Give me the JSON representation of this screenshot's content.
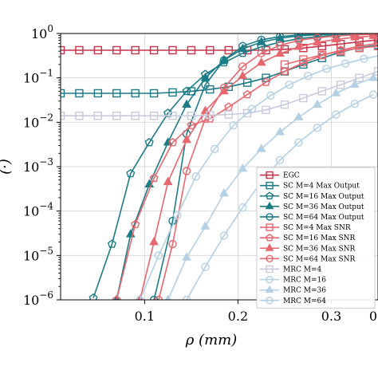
{
  "chart_data": {
    "type": "line",
    "xlabel": "ρ (mm)",
    "ylabel": "(·)",
    "xlim": [
      0.01,
      0.35
    ],
    "ylim_log10": [
      -6,
      0
    ],
    "yscale": "log",
    "grid": true,
    "legend_position": "lower-right",
    "x_ticks": [
      {
        "value": 0.1,
        "label": "0.1"
      },
      {
        "value": 0.2,
        "label": "0.2"
      },
      {
        "value": 0.3,
        "label": "0.3"
      },
      {
        "value": 0.4,
        "label": "0"
      }
    ],
    "y_ticks": [
      {
        "exp": 0,
        "base": "10",
        "sup": "0"
      },
      {
        "exp": -1,
        "base": "10",
        "sup": "−1"
      },
      {
        "exp": -2,
        "base": "10",
        "sup": "−2"
      },
      {
        "exp": -3,
        "base": "10",
        "sup": "−3"
      },
      {
        "exp": -4,
        "base": "10",
        "sup": "−4"
      },
      {
        "exp": -5,
        "base": "10",
        "sup": "−5"
      },
      {
        "exp": -6,
        "base": "10",
        "sup": "−6"
      }
    ],
    "series": [
      {
        "name": "EGC",
        "color": "#c8334a",
        "marker": "square",
        "x": [
          0.01,
          0.03,
          0.05,
          0.07,
          0.09,
          0.11,
          0.13,
          0.15,
          0.17,
          0.19,
          0.21,
          0.23,
          0.25,
          0.27,
          0.29,
          0.31,
          0.33,
          0.35
        ],
        "y": [
          0.42,
          0.42,
          0.42,
          0.42,
          0.42,
          0.42,
          0.42,
          0.42,
          0.42,
          0.42,
          0.42,
          0.42,
          0.44,
          0.47,
          0.52,
          0.58,
          0.65,
          0.72
        ]
      },
      {
        "name": "SC M=4 Max Output",
        "color": "#1b7c86",
        "marker": "square",
        "x": [
          0.01,
          0.03,
          0.05,
          0.07,
          0.09,
          0.11,
          0.13,
          0.15,
          0.17,
          0.19,
          0.21,
          0.23,
          0.25,
          0.27,
          0.29,
          0.31,
          0.33,
          0.35
        ],
        "y": [
          0.045,
          0.045,
          0.045,
          0.045,
          0.045,
          0.045,
          0.047,
          0.05,
          0.055,
          0.063,
          0.078,
          0.1,
          0.14,
          0.2,
          0.28,
          0.38,
          0.48,
          0.55
        ]
      },
      {
        "name": "SC M=16 Max Output",
        "color": "#1b7c86",
        "marker": "pentagon",
        "x": [
          0.045,
          0.065,
          0.085,
          0.105,
          0.125,
          0.145,
          0.165,
          0.185,
          0.205,
          0.225,
          0.245,
          0.265,
          0.285,
          0.305,
          0.325,
          0.345
        ],
        "y": [
          1.1e-06,
          1.8e-05,
          0.0007,
          0.0035,
          0.016,
          0.05,
          0.12,
          0.22,
          0.36,
          0.5,
          0.64,
          0.76,
          0.85,
          0.92,
          0.96,
          0.98
        ]
      },
      {
        "name": "SC M=36 Max Output",
        "color": "#1b7c86",
        "marker": "triangle",
        "x": [
          0.07,
          0.085,
          0.105,
          0.125,
          0.145,
          0.165,
          0.185,
          0.205,
          0.225,
          0.245,
          0.265,
          0.285,
          0.305,
          0.325,
          0.345
        ],
        "y": [
          1e-06,
          3e-05,
          0.0004,
          0.0035,
          0.025,
          0.1,
          0.25,
          0.45,
          0.64,
          0.78,
          0.88,
          0.94,
          0.97,
          0.99,
          0.995
        ]
      },
      {
        "name": "SC M=64 Max Output",
        "color": "#1b7c86",
        "marker": "circle",
        "x": [
          0.11,
          0.13,
          0.145,
          0.165,
          0.185,
          0.205,
          0.225,
          0.245,
          0.265,
          0.285,
          0.305,
          0.325,
          0.345
        ],
        "y": [
          1e-06,
          6e-05,
          0.0055,
          0.07,
          0.25,
          0.52,
          0.72,
          0.85,
          0.93,
          0.97,
          0.985,
          0.993,
          0.997
        ]
      },
      {
        "name": "SC M=4 Max SNR",
        "color": "#e8666e",
        "marker": "square",
        "x": [
          0.25,
          0.27,
          0.29,
          0.31,
          0.33,
          0.35
        ],
        "y": [
          0.2,
          0.26,
          0.33,
          0.4,
          0.47,
          0.52
        ]
      },
      {
        "name": "SC M=16 Max SNR",
        "color": "#e8666e",
        "marker": "pentagon",
        "x": [
          0.07,
          0.09,
          0.11,
          0.13,
          0.15,
          0.17,
          0.19,
          0.21,
          0.23,
          0.25,
          0.27,
          0.29,
          0.31,
          0.33,
          0.35
        ],
        "y": [
          1e-06,
          5e-05,
          0.00055,
          0.0035,
          0.0085,
          0.012,
          0.022,
          0.042,
          0.08,
          0.14,
          0.22,
          0.32,
          0.42,
          0.52,
          0.6
        ]
      },
      {
        "name": "SC M=36 Max SNR",
        "color": "#e8666e",
        "marker": "triangle",
        "x": [
          0.095,
          0.11,
          0.125,
          0.145,
          0.165,
          0.185,
          0.205,
          0.225,
          0.245,
          0.265,
          0.285,
          0.305,
          0.325,
          0.345
        ],
        "y": [
          1e-06,
          2e-05,
          0.00045,
          0.004,
          0.018,
          0.05,
          0.11,
          0.22,
          0.35,
          0.5,
          0.63,
          0.74,
          0.82,
          0.88
        ]
      },
      {
        "name": "SC M=64 Max SNR",
        "color": "#e8666e",
        "marker": "circle",
        "x": [
          0.115,
          0.13,
          0.145,
          0.165,
          0.185,
          0.205,
          0.225,
          0.245,
          0.265,
          0.285,
          0.305,
          0.325,
          0.345
        ],
        "y": [
          1e-06,
          1.8e-05,
          0.0008,
          0.012,
          0.06,
          0.18,
          0.36,
          0.54,
          0.7,
          0.8,
          0.88,
          0.93,
          0.96
        ]
      },
      {
        "name": "MRC M=4",
        "color": "#c9c9de",
        "marker": "square",
        "x": [
          0.01,
          0.03,
          0.05,
          0.07,
          0.09,
          0.11,
          0.13,
          0.15,
          0.17,
          0.19,
          0.21,
          0.23,
          0.25,
          0.27,
          0.29,
          0.31,
          0.33,
          0.35
        ],
        "y": [
          0.014,
          0.014,
          0.014,
          0.014,
          0.014,
          0.014,
          0.014,
          0.014,
          0.0145,
          0.015,
          0.016,
          0.019,
          0.025,
          0.035,
          0.05,
          0.07,
          0.1,
          0.14
        ]
      },
      {
        "name": "MRC M=16",
        "color": "#b4d0e4",
        "marker": "circle",
        "x": [
          0.095,
          0.115,
          0.135,
          0.155,
          0.175,
          0.195,
          0.215,
          0.235,
          0.255,
          0.275,
          0.295,
          0.315,
          0.335,
          0.355
        ],
        "y": [
          1e-06,
          1e-05,
          8e-05,
          0.0006,
          0.0025,
          0.0085,
          0.02,
          0.04,
          0.07,
          0.11,
          0.16,
          0.21,
          0.27,
          0.33
        ]
      },
      {
        "name": "MRC M=36",
        "color": "#b4d0e4",
        "marker": "triangle",
        "x": [
          0.125,
          0.145,
          0.165,
          0.185,
          0.205,
          0.225,
          0.245,
          0.265,
          0.285,
          0.305,
          0.325,
          0.345
        ],
        "y": [
          1e-06,
          9e-06,
          4.5e-05,
          0.00025,
          0.0009,
          0.0025,
          0.006,
          0.013,
          0.025,
          0.045,
          0.07,
          0.1
        ]
      },
      {
        "name": "MRC M=64",
        "color": "#b4d0e4",
        "marker": "circle",
        "x": [
          0.145,
          0.165,
          0.185,
          0.205,
          0.225,
          0.245,
          0.265,
          0.285,
          0.305,
          0.325,
          0.345
        ],
        "y": [
          1e-06,
          5.5e-06,
          2.8e-05,
          0.00012,
          0.00045,
          0.0014,
          0.0035,
          0.0075,
          0.015,
          0.026,
          0.042
        ]
      }
    ]
  }
}
